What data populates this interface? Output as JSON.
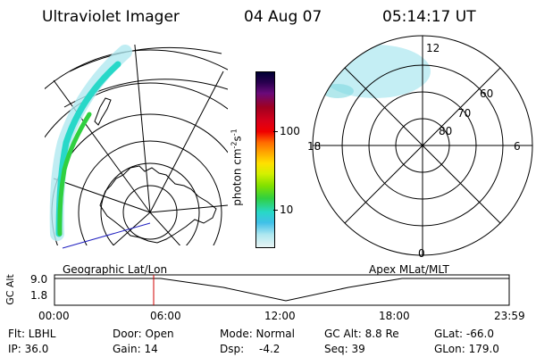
{
  "header": {
    "instrument": "Ultraviolet Imager",
    "date": "04 Aug 07",
    "time": "05:14:17 UT"
  },
  "colorbar": {
    "label": "photon cm",
    "label_exp1": "-2",
    "label_mid": "s",
    "label_exp2": "-1",
    "tick_100": "100",
    "tick_10": "10",
    "scale": "log",
    "colors": [
      "#000033",
      "#2a0050",
      "#6a0a7a",
      "#a00020",
      "#d8001a",
      "#f00000",
      "#ff6a00",
      "#ffa800",
      "#ffe000",
      "#d4f000",
      "#80e000",
      "#30d040",
      "#28d8c8",
      "#40c0e8",
      "#b0e8f0",
      "#e8f4f4"
    ]
  },
  "polar_dial": {
    "mlt_labels": {
      "top": "12",
      "left": "18",
      "right": "6",
      "bottom": "0"
    },
    "lat_labels": [
      "60",
      "70",
      "80"
    ]
  },
  "timeline": {
    "left_label": "Geographic Lat/Lon",
    "right_label": "Apex MLat/MLT",
    "axis_label": "GC Alt",
    "y_ticks": [
      "9.0",
      "1.8"
    ],
    "x_ticks": [
      "00:00",
      "06:00",
      "12:00",
      "18:00",
      "23:59"
    ],
    "marker_time": "05:14"
  },
  "status": {
    "flt": "Flt: LBHL",
    "ip": "IP: 36.0",
    "door": "Door: Open",
    "gain": "Gain: 14",
    "mode": "Mode: Normal",
    "dsp": "Dsp:",
    "dsp_value": "-4.2",
    "gc_alt": "GC Alt: 8.8 Re",
    "seq": "Seq: 39",
    "glat": "GLat: -66.0",
    "glon": "GLon: 179.0"
  },
  "colors": {
    "aurora_core": "#30d040",
    "aurora_edge": "#28d8c8",
    "aurora_faint": "#b0e8f0",
    "marker": "#d00000",
    "terminator": "#2020c0"
  }
}
